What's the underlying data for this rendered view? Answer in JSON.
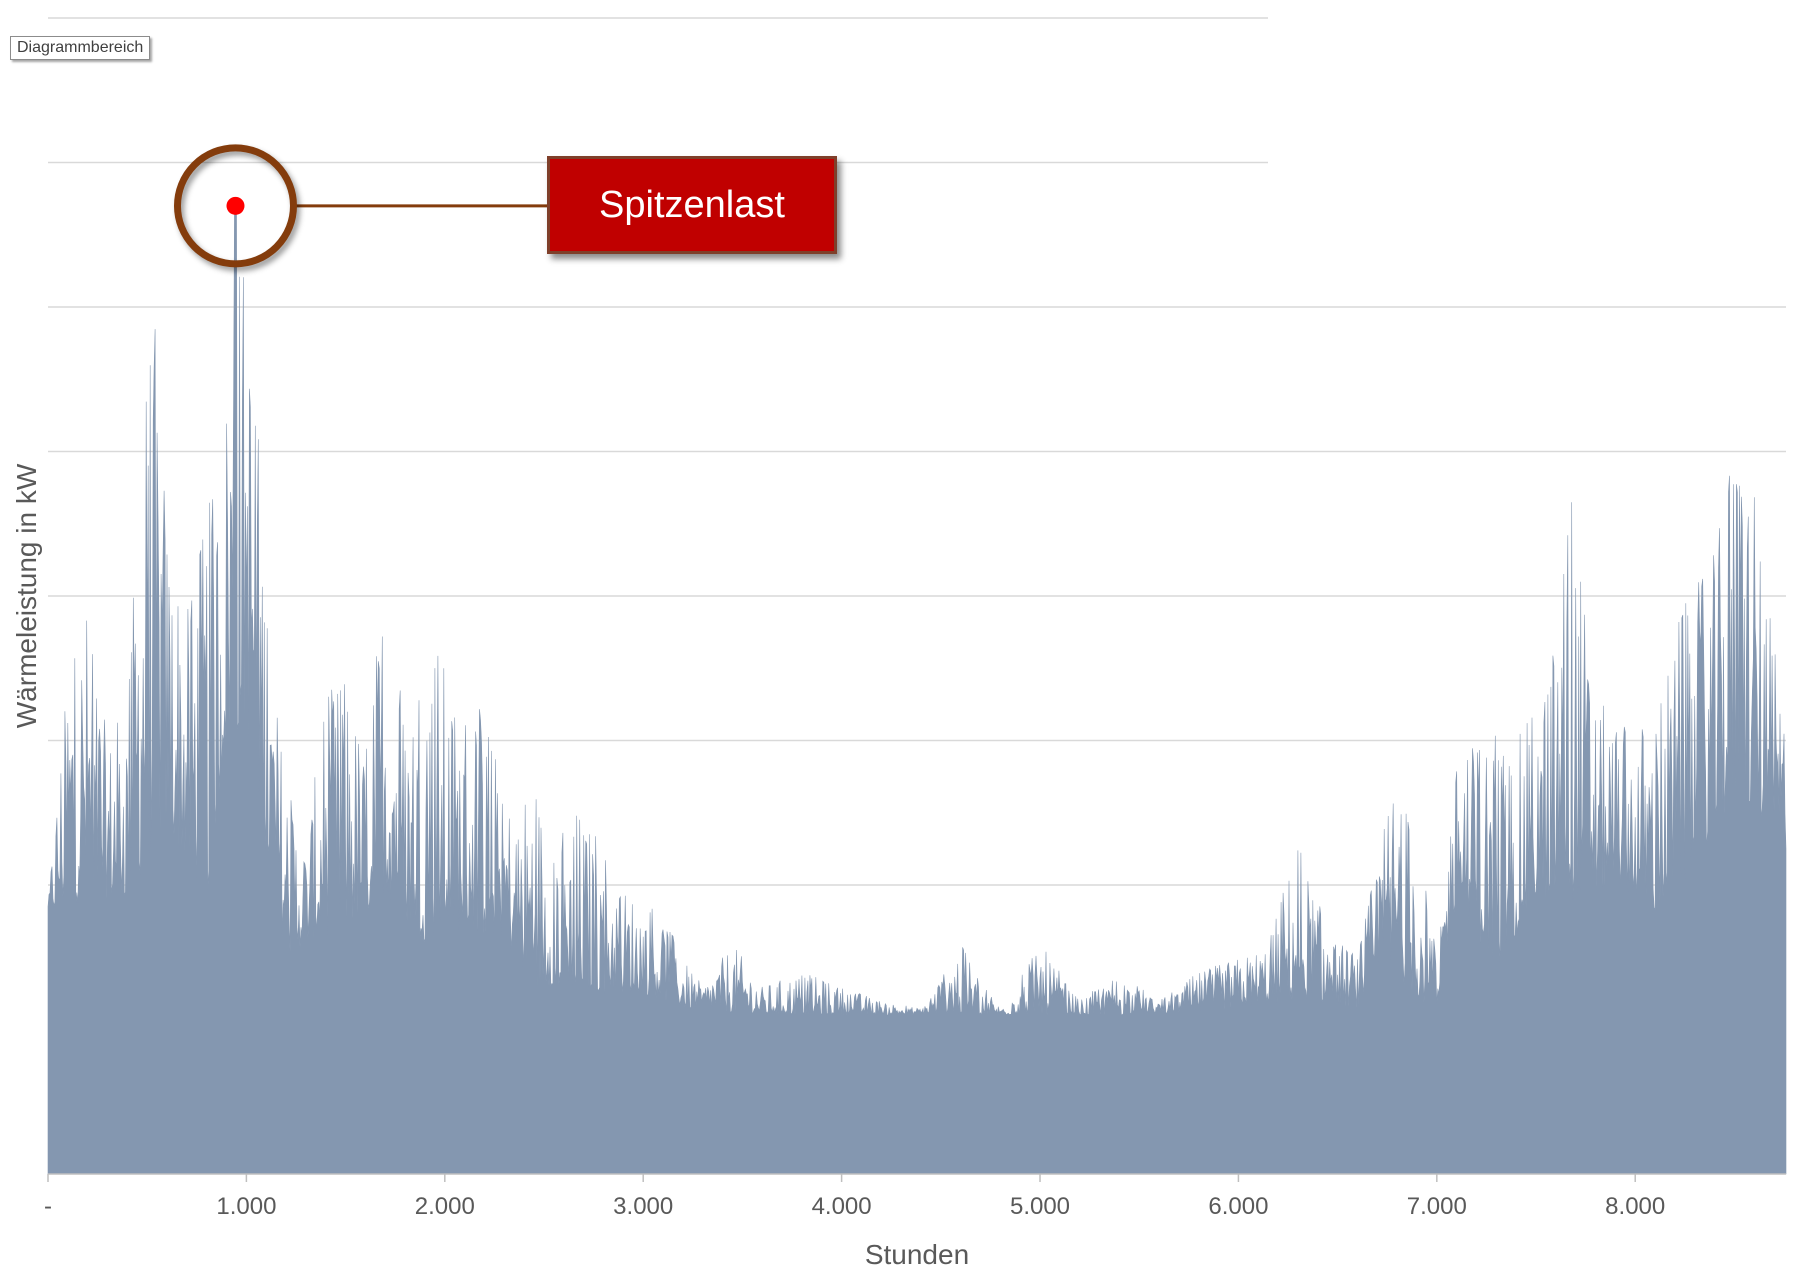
{
  "ui": {
    "selection_tag": "Diagrammbereich"
  },
  "annotation": {
    "label": "Spitzenlast",
    "box_color": "#c00000",
    "ring_color": "#843c0c",
    "marker_color": "#ff0000"
  },
  "chart_data": {
    "type": "area",
    "title": "",
    "xlabel": "Stunden",
    "ylabel": "Wärmeleistung in kW",
    "x_ticks": [
      "-",
      "1.000",
      "2.000",
      "3.000",
      "4.000",
      "5.000",
      "6.000",
      "7.000",
      "8.000"
    ],
    "x_tick_values": [
      0,
      1000,
      2000,
      3000,
      4000,
      5000,
      6000,
      7000,
      8000
    ],
    "xlim": [
      0,
      8760
    ],
    "ylim": [
      0,
      8
    ],
    "y_ticks_shown": false,
    "gridlines_y": [
      1,
      2,
      3,
      4,
      5,
      6,
      7,
      8
    ],
    "grid": true,
    "legend": "none",
    "series_color": "#8497b0",
    "peak": {
      "x": 945,
      "y": 6.7
    },
    "envelope": [
      [
        0,
        1.9
      ],
      [
        100,
        3.6
      ],
      [
        200,
        4.0
      ],
      [
        300,
        3.0
      ],
      [
        400,
        3.4
      ],
      [
        480,
        5.2
      ],
      [
        540,
        5.9
      ],
      [
        600,
        4.6
      ],
      [
        700,
        3.9
      ],
      [
        800,
        4.6
      ],
      [
        880,
        5.0
      ],
      [
        945,
        6.7
      ],
      [
        1000,
        6.3
      ],
      [
        1060,
        5.1
      ],
      [
        1120,
        3.6
      ],
      [
        1200,
        2.8
      ],
      [
        1300,
        2.3
      ],
      [
        1400,
        3.3
      ],
      [
        1500,
        3.5
      ],
      [
        1600,
        2.9
      ],
      [
        1700,
        4.3
      ],
      [
        1800,
        3.2
      ],
      [
        1930,
        4.0
      ],
      [
        2050,
        3.2
      ],
      [
        2150,
        3.4
      ],
      [
        2250,
        2.9
      ],
      [
        2350,
        2.5
      ],
      [
        2450,
        2.8
      ],
      [
        2550,
        2.2
      ],
      [
        2650,
        2.6
      ],
      [
        2780,
        2.3
      ],
      [
        2900,
        2.0
      ],
      [
        3000,
        1.9
      ],
      [
        3100,
        1.8
      ],
      [
        3200,
        1.5
      ],
      [
        3300,
        1.3
      ],
      [
        3450,
        1.6
      ],
      [
        3600,
        1.3
      ],
      [
        3800,
        1.4
      ],
      [
        4000,
        1.3
      ],
      [
        4200,
        1.2
      ],
      [
        4400,
        1.15
      ],
      [
        4600,
        1.6
      ],
      [
        4800,
        1.15
      ],
      [
        5000,
        1.6
      ],
      [
        5200,
        1.2
      ],
      [
        5400,
        1.4
      ],
      [
        5600,
        1.2
      ],
      [
        5800,
        1.4
      ],
      [
        6000,
        1.5
      ],
      [
        6150,
        1.6
      ],
      [
        6300,
        2.3
      ],
      [
        6450,
        1.7
      ],
      [
        6600,
        1.5
      ],
      [
        6780,
        2.8
      ],
      [
        6900,
        2.4
      ],
      [
        7000,
        1.5
      ],
      [
        7100,
        2.9
      ],
      [
        7250,
        3.1
      ],
      [
        7400,
        3.0
      ],
      [
        7550,
        3.4
      ],
      [
        7680,
        4.8
      ],
      [
        7800,
        3.3
      ],
      [
        7950,
        3.1
      ],
      [
        8100,
        3.2
      ],
      [
        8250,
        4.0
      ],
      [
        8400,
        4.3
      ],
      [
        8500,
        5.1
      ],
      [
        8560,
        5.2
      ],
      [
        8650,
        4.2
      ],
      [
        8760,
        3.1
      ]
    ],
    "floor": [
      [
        0,
        1.8
      ],
      [
        200,
        1.9
      ],
      [
        400,
        1.9
      ],
      [
        600,
        2.4
      ],
      [
        800,
        1.9
      ],
      [
        900,
        3.0
      ],
      [
        1000,
        3.1
      ],
      [
        1100,
        2.2
      ],
      [
        1200,
        1.5
      ],
      [
        1300,
        1.6
      ],
      [
        1500,
        1.7
      ],
      [
        1700,
        1.9
      ],
      [
        1900,
        1.6
      ],
      [
        2100,
        1.7
      ],
      [
        2300,
        1.6
      ],
      [
        2450,
        1.3
      ],
      [
        2600,
        1.3
      ],
      [
        2800,
        1.25
      ],
      [
        3000,
        1.25
      ],
      [
        3200,
        1.15
      ],
      [
        3400,
        1.12
      ],
      [
        3600,
        1.1
      ],
      [
        5400,
        1.1
      ],
      [
        5800,
        1.12
      ],
      [
        6000,
        1.15
      ],
      [
        6300,
        1.2
      ],
      [
        6600,
        1.15
      ],
      [
        6800,
        1.35
      ],
      [
        7000,
        1.1
      ],
      [
        7100,
        1.9
      ],
      [
        7300,
        1.4
      ],
      [
        7500,
        1.9
      ],
      [
        7700,
        1.9
      ],
      [
        7900,
        2.0
      ],
      [
        8100,
        1.8
      ],
      [
        8300,
        2.1
      ],
      [
        8500,
        2.6
      ],
      [
        8650,
        2.4
      ],
      [
        8760,
        2.2
      ]
    ]
  }
}
